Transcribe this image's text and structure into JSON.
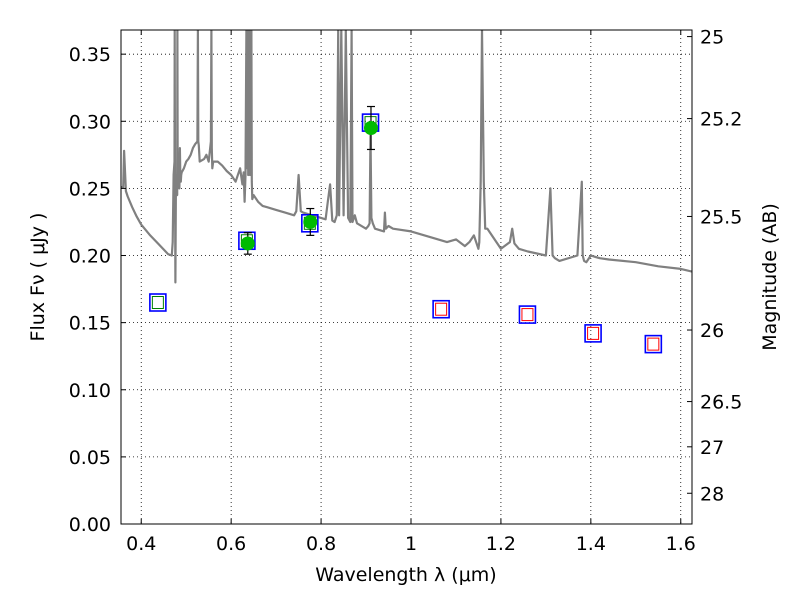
{
  "chart_data": {
    "type": "scatter",
    "xlabel": "Wavelength  λ (μm)",
    "ylabel": "Flux  Fν  ( μJy )",
    "ylabel_right": "Magnitude (AB)",
    "xlim": [
      0.355,
      1.625
    ],
    "ylim": [
      0.0,
      0.368
    ],
    "grid": true,
    "x_ticks": [
      0.4,
      0.6,
      0.8,
      1.0,
      1.2,
      1.4,
      1.6
    ],
    "x_tick_labels": [
      "0.4",
      "0.6",
      "0.8",
      "1",
      "1.2",
      "1.4",
      "1.6"
    ],
    "y_ticks": [
      0.0,
      0.05,
      0.1,
      0.15,
      0.2,
      0.25,
      0.3,
      0.35
    ],
    "y_tick_labels": [
      "0.00",
      "0.05",
      "0.10",
      "0.15",
      "0.20",
      "0.25",
      "0.30",
      "0.35"
    ],
    "right_ticks": [
      {
        "label": "25",
        "flux": 0.3631
      },
      {
        "label": "25.2",
        "flux": 0.302
      },
      {
        "label": "25.5",
        "flux": 0.2291
      },
      {
        "label": "26",
        "flux": 0.1445
      },
      {
        "label": "26.5",
        "flux": 0.0912
      },
      {
        "label": "27",
        "flux": 0.0575
      },
      {
        "label": "28",
        "flux": 0.0229
      }
    ],
    "series": [
      {
        "kind": "model-spectrum",
        "color": "#808080",
        "x": [
          0.355,
          0.36,
          0.362,
          0.366,
          0.37,
          0.38,
          0.39,
          0.4,
          0.42,
          0.44,
          0.46,
          0.468,
          0.47,
          0.472,
          0.474,
          0.4745,
          0.475,
          0.476,
          0.477,
          0.478,
          0.48,
          0.4805,
          0.481,
          0.482,
          0.483,
          0.484,
          0.485,
          0.486,
          0.487,
          0.488,
          0.489,
          0.49,
          0.495,
          0.5,
          0.505,
          0.51,
          0.515,
          0.52,
          0.525,
          0.526,
          0.527,
          0.528,
          0.53,
          0.54,
          0.545,
          0.55,
          0.555,
          0.556,
          0.557,
          0.558,
          0.56,
          0.57,
          0.58,
          0.59,
          0.6,
          0.61,
          0.62,
          0.625,
          0.628,
          0.63,
          0.632,
          0.634,
          0.636,
          0.637,
          0.638,
          0.64,
          0.642,
          0.643,
          0.644,
          0.645,
          0.646,
          0.647,
          0.65,
          0.66,
          0.67,
          0.68,
          0.7,
          0.72,
          0.74,
          0.745,
          0.75,
          0.755,
          0.76,
          0.78,
          0.8,
          0.81,
          0.815,
          0.82,
          0.825,
          0.83,
          0.835,
          0.838,
          0.84,
          0.845,
          0.85,
          0.855,
          0.86,
          0.865,
          0.868,
          0.87,
          0.875,
          0.88,
          0.9,
          0.905,
          0.908,
          0.91,
          0.912,
          0.915,
          0.92,
          0.94,
          0.942,
          0.944,
          0.95,
          0.96,
          1.0,
          1.05,
          1.08,
          1.1,
          1.12,
          1.13,
          1.14,
          1.15,
          1.152,
          1.155,
          1.158,
          1.162,
          1.165,
          1.17,
          1.2,
          1.22,
          1.225,
          1.23,
          1.24,
          1.26,
          1.3,
          1.31,
          1.315,
          1.32,
          1.33,
          1.37,
          1.38,
          1.382,
          1.385,
          1.39,
          1.4,
          1.41,
          1.42,
          1.44,
          1.5,
          1.55,
          1.6,
          1.625
        ],
        "y": [
          0.251,
          0.251,
          0.278,
          0.248,
          0.244,
          0.236,
          0.229,
          0.223,
          0.215,
          0.208,
          0.201,
          0.2,
          0.21,
          0.26,
          0.27,
          0.368,
          0.26,
          0.18,
          0.25,
          0.26,
          0.245,
          0.368,
          0.25,
          0.26,
          0.265,
          0.255,
          0.25,
          0.28,
          0.26,
          0.255,
          0.26,
          0.262,
          0.265,
          0.27,
          0.272,
          0.275,
          0.28,
          0.283,
          0.285,
          0.368,
          0.285,
          0.282,
          0.27,
          0.272,
          0.275,
          0.27,
          0.285,
          0.368,
          0.28,
          0.265,
          0.27,
          0.27,
          0.267,
          0.263,
          0.26,
          0.255,
          0.265,
          0.253,
          0.262,
          0.24,
          0.26,
          0.368,
          0.265,
          0.368,
          0.26,
          0.368,
          0.26,
          0.368,
          0.26,
          0.368,
          0.255,
          0.242,
          0.245,
          0.24,
          0.237,
          0.236,
          0.234,
          0.232,
          0.23,
          0.233,
          0.26,
          0.233,
          0.232,
          0.23,
          0.228,
          0.227,
          0.24,
          0.253,
          0.226,
          0.225,
          0.23,
          0.368,
          0.23,
          0.368,
          0.23,
          0.368,
          0.228,
          0.225,
          0.368,
          0.225,
          0.23,
          0.224,
          0.22,
          0.222,
          0.224,
          0.29,
          0.228,
          0.224,
          0.22,
          0.218,
          0.232,
          0.22,
          0.222,
          0.22,
          0.218,
          0.213,
          0.21,
          0.212,
          0.207,
          0.21,
          0.215,
          0.205,
          0.21,
          0.255,
          0.368,
          0.255,
          0.22,
          0.22,
          0.205,
          0.21,
          0.22,
          0.209,
          0.205,
          0.203,
          0.2,
          0.25,
          0.2,
          0.198,
          0.196,
          0.2,
          0.255,
          0.2,
          0.196,
          0.195,
          0.2,
          0.199,
          0.198,
          0.197,
          0.195,
          0.192,
          0.19,
          0.188
        ]
      },
      {
        "kind": "photometry-squares",
        "edge_color": "#0000ff",
        "points": [
          {
            "x": 0.437,
            "y": 0.165,
            "inner": "#008000"
          },
          {
            "x": 0.635,
            "y": 0.211,
            "inner": "#008000"
          },
          {
            "x": 0.775,
            "y": 0.224,
            "inner": "#008000"
          },
          {
            "x": 0.91,
            "y": 0.299,
            "inner": "#008000"
          },
          {
            "x": 1.067,
            "y": 0.16,
            "inner": "#ff0000"
          },
          {
            "x": 1.259,
            "y": 0.156,
            "inner": "#ff0000"
          },
          {
            "x": 1.405,
            "y": 0.142,
            "inner": "#ff0000"
          },
          {
            "x": 1.539,
            "y": 0.134,
            "inner": "#ff0000"
          }
        ]
      },
      {
        "kind": "measured-points",
        "color": "#00bb00",
        "points": [
          {
            "x": 0.637,
            "y": 0.209,
            "yerr": 0.008
          },
          {
            "x": 0.776,
            "y": 0.225,
            "yerr": 0.01
          },
          {
            "x": 0.911,
            "y": 0.295,
            "yerr": 0.016
          }
        ]
      }
    ]
  }
}
